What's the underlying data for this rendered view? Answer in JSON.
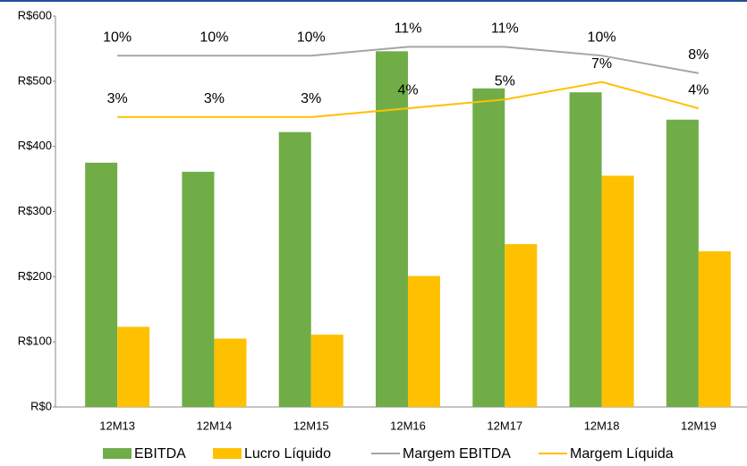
{
  "chart_data": {
    "type": "bar",
    "categories": [
      "12M13",
      "12M14",
      "12M15",
      "12M16",
      "12M17",
      "12M18",
      "12M19"
    ],
    "series": [
      {
        "name": "EBITDA",
        "color": "#70ad47",
        "values": [
          375,
          361,
          422,
          546,
          489,
          483,
          441
        ]
      },
      {
        "name": "Lucro Líquido",
        "color": "#ffc000",
        "values": [
          123,
          105,
          111,
          201,
          250,
          355,
          239
        ]
      },
      {
        "name": "Margem EBITDA",
        "color": "#a5a5a5",
        "axis": "y2",
        "values": [
          10,
          10,
          10,
          11,
          11,
          10,
          8
        ],
        "value_labels": [
          "10%",
          "10%",
          "10%",
          "11%",
          "11%",
          "10%",
          "8%"
        ]
      },
      {
        "name": "Margem Líquida",
        "color": "#ffc000",
        "axis": "y2",
        "values": [
          3,
          3,
          3,
          4,
          5,
          7,
          4
        ],
        "value_labels": [
          "3%",
          "3%",
          "3%",
          "4%",
          "5%",
          "7%",
          "4%"
        ]
      }
    ],
    "ylim": [
      0,
      600
    ],
    "yticks": [
      {
        "value": 0,
        "label": "R$0"
      },
      {
        "value": 100,
        "label": "R$100"
      },
      {
        "value": 200,
        "label": "R$200"
      },
      {
        "value": 300,
        "label": "R$300"
      },
      {
        "value": 400,
        "label": "R$400"
      },
      {
        "value": 500,
        "label": "R$500"
      },
      {
        "value": 600,
        "label": "R$600"
      }
    ],
    "y2lim": [
      -30,
      14.5
    ],
    "legend": "bottom"
  }
}
